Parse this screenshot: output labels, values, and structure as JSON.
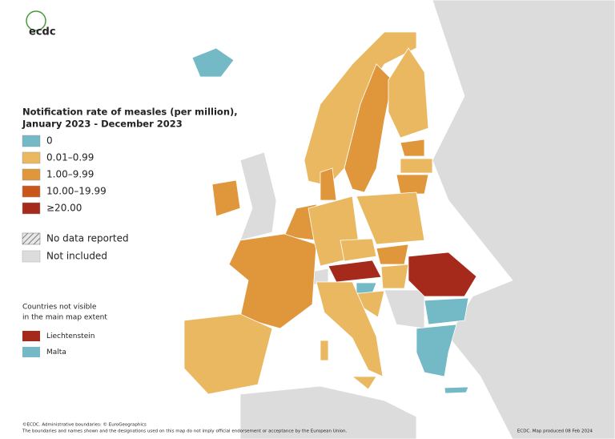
{
  "logo": "ecdc",
  "legend": {
    "title": [
      "Notification rate of measles (per million),",
      "January 2023 - December 2023"
    ],
    "items": [
      {
        "label": "0",
        "color": "#74b9c6"
      },
      {
        "label": "0.01–0.99",
        "color": "#ebb862"
      },
      {
        "label": "1.00–9.99",
        "color": "#e0963a"
      },
      {
        "label": "10.00–19.99",
        "color": "#c9561a"
      },
      {
        "label": "≥20.00",
        "color": "#a52a1c"
      }
    ],
    "no_data": "No data reported",
    "not_included": {
      "label": "Not included",
      "color": "#dcdcdc"
    }
  },
  "not_visible": {
    "title": [
      "Countries not visible",
      "in the main map extent"
    ],
    "items": [
      {
        "label": "Liechtenstein",
        "color": "#a52a1c"
      },
      {
        "label": "Malta",
        "color": "#74b9c6"
      }
    ]
  },
  "footer": {
    "left": [
      "©ECDC. Administrative boundaries: © EuroGeographics",
      "The boundaries and names shown and the designations used on this map do not imply official endorsement or acceptance by the European Union."
    ],
    "right": "ECDC. Map produced 08 Feb 2024"
  }
}
